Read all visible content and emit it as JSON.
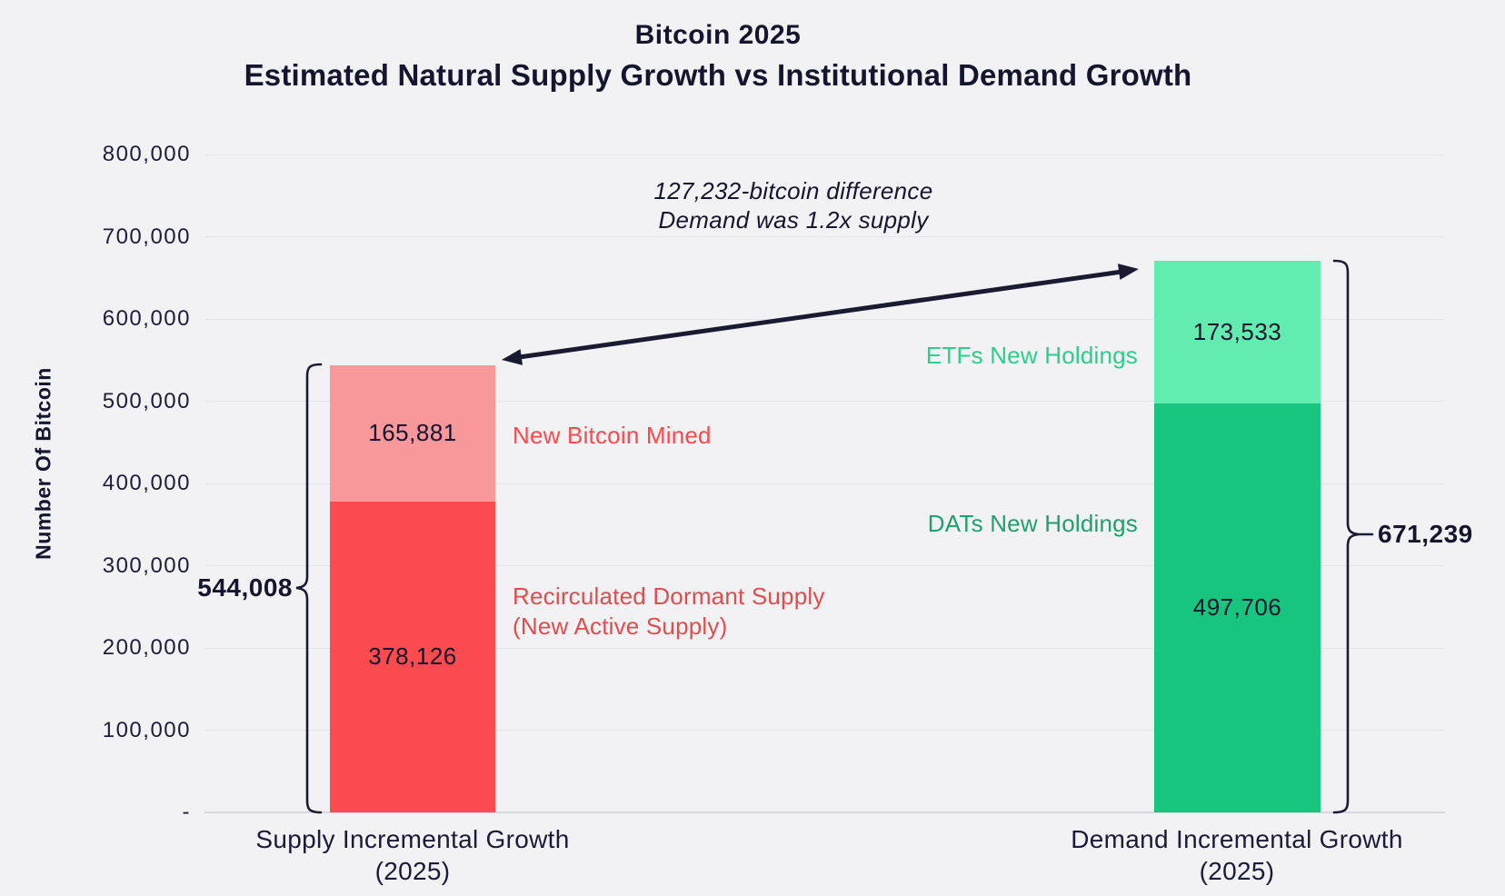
{
  "title": {
    "line1": "Bitcoin 2025",
    "line2": "Estimated Natural Supply Growth vs Institutional Demand Growth"
  },
  "y_axis": {
    "title": "Number Of Bitcoin",
    "ticks": [
      {
        "label": "800,000",
        "value": 800000
      },
      {
        "label": "700,000",
        "value": 700000
      },
      {
        "label": "600,000",
        "value": 600000
      },
      {
        "label": "500,000",
        "value": 500000
      },
      {
        "label": "400,000",
        "value": 400000
      },
      {
        "label": "300,000",
        "value": 300000
      },
      {
        "label": "200,000",
        "value": 200000
      },
      {
        "label": "100,000",
        "value": 100000
      },
      {
        "label": "-",
        "value": 0
      }
    ]
  },
  "annotation": {
    "line1": "127,232-bitcoin difference",
    "line2": "Demand was 1.2x supply"
  },
  "bars": {
    "supply": {
      "category_line1": "Supply Incremental Growth",
      "category_line2": "(2025)",
      "total": "544,008",
      "segments": {
        "mined": {
          "value": 165881,
          "label": "165,881",
          "name": "New Bitcoin Mined"
        },
        "recirculated": {
          "value": 378126,
          "label": "378,126",
          "name_line1": "Recirculated Dormant Supply",
          "name_line2": "(New Active Supply)"
        }
      }
    },
    "demand": {
      "category_line1": "Demand Incremental Growth",
      "category_line2": "(2025)",
      "total": "671,239",
      "segments": {
        "etfs": {
          "value": 173533,
          "label": "173,533",
          "name": "ETFs New Holdings"
        },
        "dats": {
          "value": 497706,
          "label": "497,706",
          "name": "DATs New Holdings"
        }
      }
    }
  },
  "colors": {
    "background": "#f2f2f5",
    "ink": "#15152e",
    "red": "#fb4b4e",
    "pink": "#f9989b",
    "green_dark": "#17c57f",
    "green_light": "#63ecaf",
    "label_red_bright": "#fa4a4e",
    "label_red_dark": "#de4e4e",
    "label_green_light": "#2bce8a",
    "label_green_dark": "#1fa06c",
    "gridline": "#e3e3ea"
  },
  "chart_data": {
    "type": "bar",
    "subtype": "stacked",
    "title": "Bitcoin 2025 — Estimated Natural Supply Growth vs Institutional Demand Growth",
    "xlabel": "",
    "ylabel": "Number Of Bitcoin",
    "ylim": [
      0,
      800000
    ],
    "ytick_step": 100000,
    "grid": true,
    "legend_position": "none",
    "categories": [
      "Supply Incremental Growth (2025)",
      "Demand Incremental Growth (2025)"
    ],
    "series": [
      {
        "name": "Recirculated Dormant Supply (New Active Supply)",
        "values": [
          378126,
          0
        ],
        "color": "#fb4b4e"
      },
      {
        "name": "New Bitcoin Mined",
        "values": [
          165881,
          0
        ],
        "color": "#f9989b"
      },
      {
        "name": "DATs New Holdings",
        "values": [
          0,
          497706
        ],
        "color": "#17c57f"
      },
      {
        "name": "ETFs New Holdings",
        "values": [
          0,
          173533
        ],
        "color": "#63ecaf"
      }
    ],
    "totals": [
      544008,
      671239
    ],
    "annotations": [
      "127,232-bitcoin difference",
      "Demand was 1.2x supply"
    ]
  }
}
